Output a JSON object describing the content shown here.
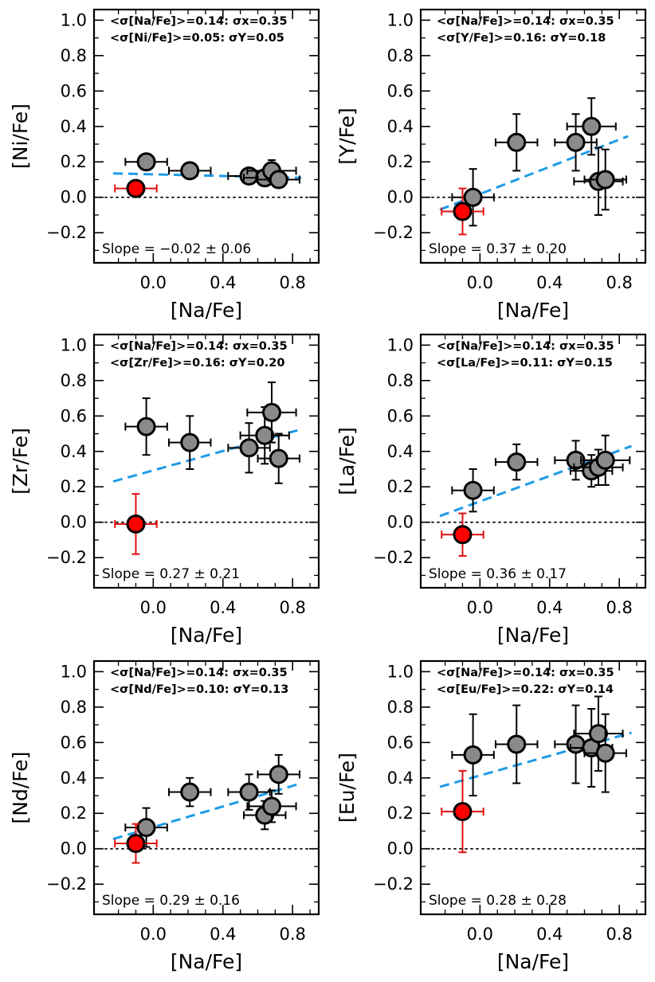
{
  "colors": {
    "star_gray": "#8a8a8a",
    "star_red": "#ff0000",
    "errorbar_black": "#000000",
    "errorbar_red": "#e01010",
    "fit_line": "#1e9be6",
    "zero_line": "#000000"
  },
  "chart_data": [
    {
      "type": "scatter",
      "xlabel": "[Na/Fe]",
      "ylabel": "[Ni/Fe]",
      "xlim": [
        -0.34,
        0.95
      ],
      "ylim": [
        -0.37,
        1.06
      ],
      "xticks": [
        "0.0",
        "0.4",
        "0.8"
      ],
      "yticks": [
        "−0.2",
        "0.0",
        "0.2",
        "0.4",
        "0.6",
        "0.8",
        "1.0"
      ],
      "annotations": {
        "line1": "<σ[Na/Fe]>=0.14:  σx=0.35",
        "line2": "<σ[Ni/Fe]>=0.05:  σY=0.05"
      },
      "slope_text": "Slope =  −0.02 ±   0.06",
      "fit": {
        "x": [
          -0.23,
          0.85
        ],
        "y": [
          0.135,
          0.11
        ]
      },
      "points": [
        {
          "x": -0.04,
          "y": 0.2,
          "xerr": 0.12,
          "yerr": 0.03,
          "color": "gray"
        },
        {
          "x": 0.21,
          "y": 0.15,
          "xerr": 0.12,
          "yerr": 0.03,
          "color": "gray"
        },
        {
          "x": 0.55,
          "y": 0.12,
          "xerr": 0.12,
          "yerr": 0.03,
          "color": "gray"
        },
        {
          "x": 0.64,
          "y": 0.11,
          "xerr": 0.12,
          "yerr": 0.03,
          "color": "gray"
        },
        {
          "x": 0.68,
          "y": 0.15,
          "xerr": 0.14,
          "yerr": 0.06,
          "color": "gray"
        },
        {
          "x": 0.72,
          "y": 0.1,
          "xerr": 0.12,
          "yerr": 0.03,
          "color": "gray"
        },
        {
          "x": -0.1,
          "y": 0.05,
          "xerr": 0.12,
          "yerr": 0.02,
          "color": "red"
        }
      ]
    },
    {
      "type": "scatter",
      "xlabel": "[Na/Fe]",
      "ylabel": "[Y/Fe]",
      "xlim": [
        -0.34,
        0.95
      ],
      "ylim": [
        -0.37,
        1.06
      ],
      "xticks": [
        "0.0",
        "0.4",
        "0.8"
      ],
      "yticks": [
        "−0.2",
        "0.0",
        "0.2",
        "0.4",
        "0.6",
        "0.8",
        "1.0"
      ],
      "annotations": {
        "line1": "<σ[Na/Fe]>=0.14:  σx=0.35",
        "line2": "<σ[Y/Fe]>=0.16:  σY=0.18"
      },
      "slope_text": "Slope =   0.37 ±   0.20",
      "fit": {
        "x": [
          -0.23,
          0.85
        ],
        "y": [
          -0.07,
          0.345
        ]
      },
      "points": [
        {
          "x": -0.04,
          "y": 0.0,
          "xerr": 0.12,
          "yerr": 0.16,
          "color": "gray"
        },
        {
          "x": 0.21,
          "y": 0.31,
          "xerr": 0.12,
          "yerr": 0.16,
          "color": "gray"
        },
        {
          "x": 0.55,
          "y": 0.31,
          "xerr": 0.12,
          "yerr": 0.16,
          "color": "gray"
        },
        {
          "x": 0.64,
          "y": 0.4,
          "xerr": 0.14,
          "yerr": 0.16,
          "color": "gray"
        },
        {
          "x": 0.68,
          "y": 0.09,
          "xerr": 0.14,
          "yerr": 0.19,
          "color": "gray"
        },
        {
          "x": 0.72,
          "y": 0.1,
          "xerr": 0.12,
          "yerr": 0.17,
          "color": "gray"
        },
        {
          "x": -0.1,
          "y": -0.08,
          "xerr": 0.12,
          "yerr": 0.13,
          "color": "red"
        }
      ]
    },
    {
      "type": "scatter",
      "xlabel": "[Na/Fe]",
      "ylabel": "[Zr/Fe]",
      "xlim": [
        -0.34,
        0.95
      ],
      "ylim": [
        -0.37,
        1.06
      ],
      "xticks": [
        "0.0",
        "0.4",
        "0.8"
      ],
      "yticks": [
        "−0.2",
        "0.0",
        "0.2",
        "0.4",
        "0.6",
        "0.8",
        "1.0"
      ],
      "annotations": {
        "line1": "<σ[Na/Fe]>=0.14:  σx=0.35",
        "line2": "<σ[Zr/Fe]>=0.16:  σY=0.20"
      },
      "slope_text": "Slope =   0.27 ±   0.21",
      "fit": {
        "x": [
          -0.23,
          0.85
        ],
        "y": [
          0.23,
          0.525
        ]
      },
      "points": [
        {
          "x": -0.04,
          "y": 0.54,
          "xerr": 0.12,
          "yerr": 0.16,
          "color": "gray"
        },
        {
          "x": 0.21,
          "y": 0.45,
          "xerr": 0.12,
          "yerr": 0.15,
          "color": "gray"
        },
        {
          "x": 0.55,
          "y": 0.42,
          "xerr": 0.12,
          "yerr": 0.14,
          "color": "gray"
        },
        {
          "x": 0.64,
          "y": 0.49,
          "xerr": 0.14,
          "yerr": 0.16,
          "color": "gray"
        },
        {
          "x": 0.68,
          "y": 0.62,
          "xerr": 0.14,
          "yerr": 0.17,
          "color": "gray"
        },
        {
          "x": 0.72,
          "y": 0.36,
          "xerr": 0.12,
          "yerr": 0.14,
          "color": "gray"
        },
        {
          "x": -0.1,
          "y": -0.01,
          "xerr": 0.12,
          "yerr": 0.17,
          "color": "red"
        }
      ]
    },
    {
      "type": "scatter",
      "xlabel": "[Na/Fe]",
      "ylabel": "[La/Fe]",
      "xlim": [
        -0.34,
        0.95
      ],
      "ylim": [
        -0.37,
        1.06
      ],
      "xticks": [
        "0.0",
        "0.4",
        "0.8"
      ],
      "yticks": [
        "−0.2",
        "0.0",
        "0.2",
        "0.4",
        "0.6",
        "0.8",
        "1.0"
      ],
      "annotations": {
        "line1": "<σ[Na/Fe]>=0.14:  σx=0.35",
        "line2": "<σ[La/Fe]>=0.11:  σY=0.15"
      },
      "slope_text": "Slope =   0.36 ±   0.17",
      "fit": {
        "x": [
          -0.23,
          0.87
        ],
        "y": [
          0.035,
          0.43
        ]
      },
      "points": [
        {
          "x": -0.04,
          "y": 0.18,
          "xerr": 0.12,
          "yerr": 0.12,
          "color": "gray"
        },
        {
          "x": 0.21,
          "y": 0.34,
          "xerr": 0.12,
          "yerr": 0.1,
          "color": "gray"
        },
        {
          "x": 0.55,
          "y": 0.35,
          "xerr": 0.12,
          "yerr": 0.11,
          "color": "gray"
        },
        {
          "x": 0.64,
          "y": 0.29,
          "xerr": 0.12,
          "yerr": 0.09,
          "color": "gray"
        },
        {
          "x": 0.68,
          "y": 0.31,
          "xerr": 0.14,
          "yerr": 0.1,
          "color": "gray"
        },
        {
          "x": 0.72,
          "y": 0.35,
          "xerr": 0.14,
          "yerr": 0.14,
          "color": "gray"
        },
        {
          "x": -0.1,
          "y": -0.07,
          "xerr": 0.12,
          "yerr": 0.12,
          "color": "red"
        }
      ]
    },
    {
      "type": "scatter",
      "xlabel": "[Na/Fe]",
      "ylabel": "[Nd/Fe]",
      "xlim": [
        -0.34,
        0.95
      ],
      "ylim": [
        -0.37,
        1.06
      ],
      "xticks": [
        "0.0",
        "0.4",
        "0.8"
      ],
      "yticks": [
        "−0.2",
        "0.0",
        "0.2",
        "0.4",
        "0.6",
        "0.8",
        "1.0"
      ],
      "annotations": {
        "line1": "<σ[Na/Fe]>=0.14:  σx=0.35",
        "line2": "<σ[Nd/Fe]>=0.10:  σY=0.13"
      },
      "slope_text": "Slope =   0.29 ±   0.16",
      "fit": {
        "x": [
          -0.23,
          0.85
        ],
        "y": [
          0.055,
          0.37
        ]
      },
      "points": [
        {
          "x": -0.04,
          "y": 0.12,
          "xerr": 0.12,
          "yerr": 0.11,
          "color": "gray"
        },
        {
          "x": 0.21,
          "y": 0.32,
          "xerr": 0.12,
          "yerr": 0.08,
          "color": "gray"
        },
        {
          "x": 0.55,
          "y": 0.32,
          "xerr": 0.12,
          "yerr": 0.1,
          "color": "gray"
        },
        {
          "x": 0.64,
          "y": 0.19,
          "xerr": 0.12,
          "yerr": 0.08,
          "color": "gray"
        },
        {
          "x": 0.68,
          "y": 0.24,
          "xerr": 0.14,
          "yerr": 0.09,
          "color": "gray"
        },
        {
          "x": 0.72,
          "y": 0.42,
          "xerr": 0.12,
          "yerr": 0.11,
          "color": "gray"
        },
        {
          "x": -0.1,
          "y": 0.03,
          "xerr": 0.12,
          "yerr": 0.11,
          "color": "red"
        }
      ]
    },
    {
      "type": "scatter",
      "xlabel": "[Na/Fe]",
      "ylabel": "[Eu/Fe]",
      "xlim": [
        -0.34,
        0.95
      ],
      "ylim": [
        -0.37,
        1.06
      ],
      "xticks": [
        "0.0",
        "0.4",
        "0.8"
      ],
      "yticks": [
        "−0.2",
        "0.0",
        "0.2",
        "0.4",
        "0.6",
        "0.8",
        "1.0"
      ],
      "annotations": {
        "line1": "<σ[Na/Fe]>=0.14:  σx=0.35",
        "line2": "<σ[Eu/Fe]>=0.22:  σY=0.14"
      },
      "slope_text": "Slope =   0.28 ±   0.28",
      "fit": {
        "x": [
          -0.23,
          0.87
        ],
        "y": [
          0.35,
          0.655
        ]
      },
      "points": [
        {
          "x": -0.04,
          "y": 0.53,
          "xerr": 0.12,
          "yerr": 0.23,
          "color": "gray"
        },
        {
          "x": 0.21,
          "y": 0.59,
          "xerr": 0.12,
          "yerr": 0.22,
          "color": "gray"
        },
        {
          "x": 0.55,
          "y": 0.59,
          "xerr": 0.12,
          "yerr": 0.22,
          "color": "gray"
        },
        {
          "x": 0.64,
          "y": 0.57,
          "xerr": 0.12,
          "yerr": 0.22,
          "color": "gray"
        },
        {
          "x": 0.68,
          "y": 0.65,
          "xerr": 0.14,
          "yerr": 0.21,
          "color": "gray"
        },
        {
          "x": 0.72,
          "y": 0.54,
          "xerr": 0.12,
          "yerr": 0.22,
          "color": "gray"
        },
        {
          "x": -0.1,
          "y": 0.21,
          "xerr": 0.12,
          "yerr": 0.23,
          "color": "red"
        }
      ]
    }
  ]
}
